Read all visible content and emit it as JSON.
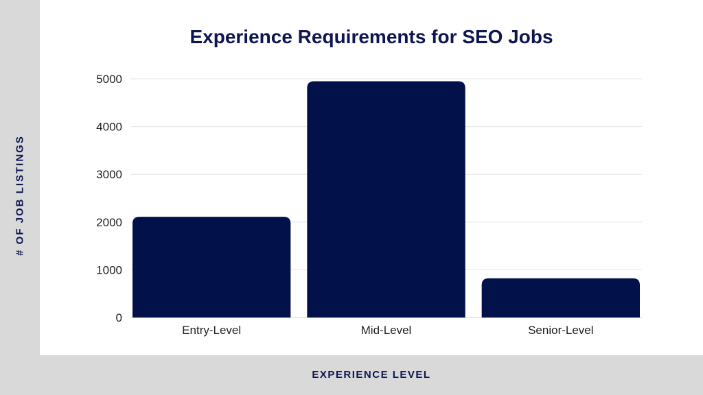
{
  "chart_data": {
    "type": "bar",
    "title": "Experience Requirements for SEO Jobs",
    "xlabel": "EXPERIENCE LEVEL",
    "ylabel": "# OF JOB LISTINGS",
    "categories": [
      "Entry-Level",
      "Mid-Level",
      "Senior-Level"
    ],
    "values": [
      2110,
      4950,
      820
    ],
    "ylim": [
      0,
      5000
    ],
    "yticks": [
      0,
      1000,
      2000,
      3000,
      4000,
      5000
    ],
    "grid": true,
    "bar_color": "#021149"
  }
}
